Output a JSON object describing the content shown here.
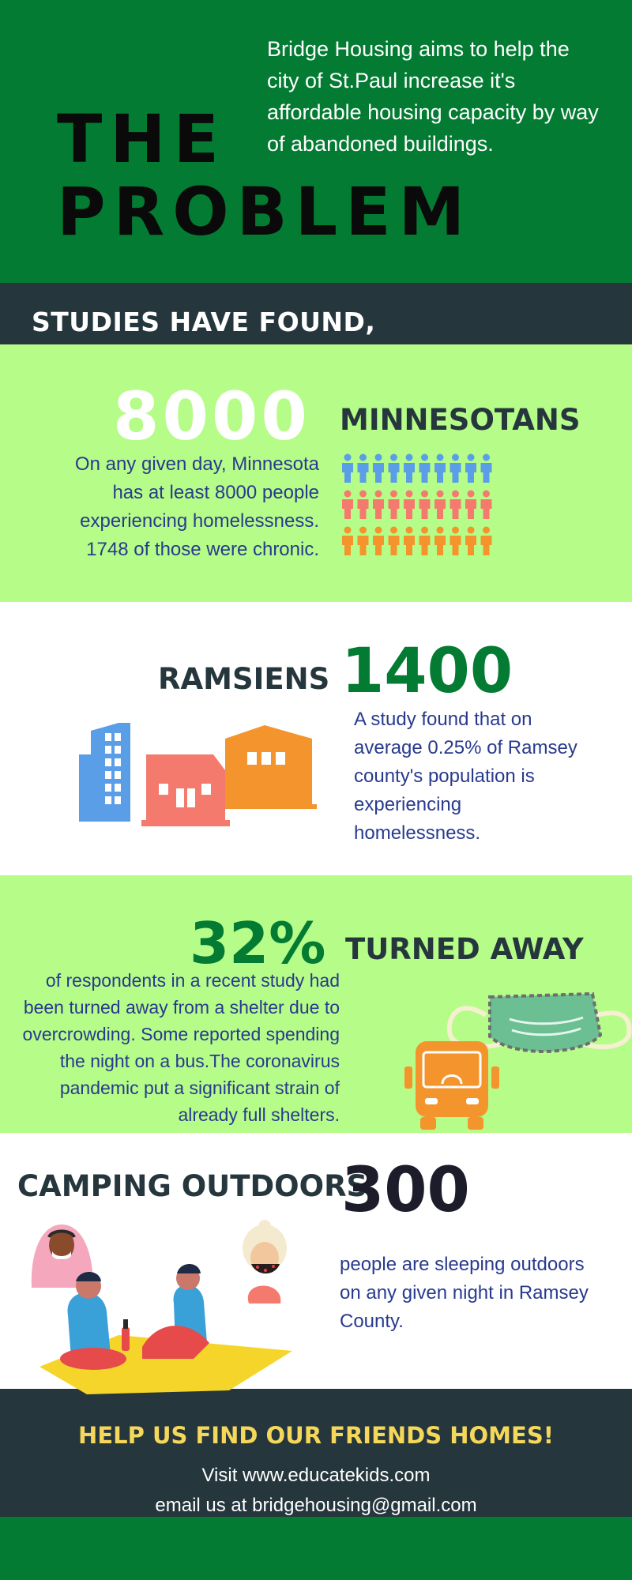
{
  "problem": {
    "intro": "Bridge Housing aims to help  the city of St.Paul increase it's affordable housing capacity by way of abandoned buildings.",
    "title_line1": "THE",
    "title_line2": "PROBLEM"
  },
  "studies": {
    "heading": "STUDIES HAVE FOUND,"
  },
  "stat_minnesotans": {
    "number": "8000",
    "label": "MINNESOTANS",
    "text": "On any given day, Minnesota has at least 8000 people experiencing homelessness. 1748 of those were chronic.",
    "icon": "people-icons",
    "colors": [
      "#5b9ee8",
      "#f47a6e",
      "#f4942c"
    ]
  },
  "stat_ramsiens": {
    "label": "RAMSIENS",
    "number": "1400",
    "text": "A study found that on average 0.25% of Ramsey county's population is experiencing homelessness.",
    "icon": "buildings-illustration"
  },
  "stat_turned_away": {
    "number": "32%",
    "label": "TURNED AWAY",
    "text": "of respondents in a recent study had been turned away from a shelter due to overcrowding. Some reported spending the night on a bus.The  coronavirus pandemic put a significant strain of already full shelters.",
    "icons": [
      "face-mask-icon",
      "bus-icon"
    ]
  },
  "stat_camping": {
    "label": "CAMPING OUTDOORS",
    "number": "300",
    "text": "people are sleeping outdoors on any given night in Ramsey County.",
    "icon": "people-picnic-illustration"
  },
  "footer": {
    "cta": "HELP US FIND OUR FRIENDS HOMES!",
    "visit": "Visit www.educatekids.com",
    "email": "email us at bridgehousing@gmail.com"
  }
}
